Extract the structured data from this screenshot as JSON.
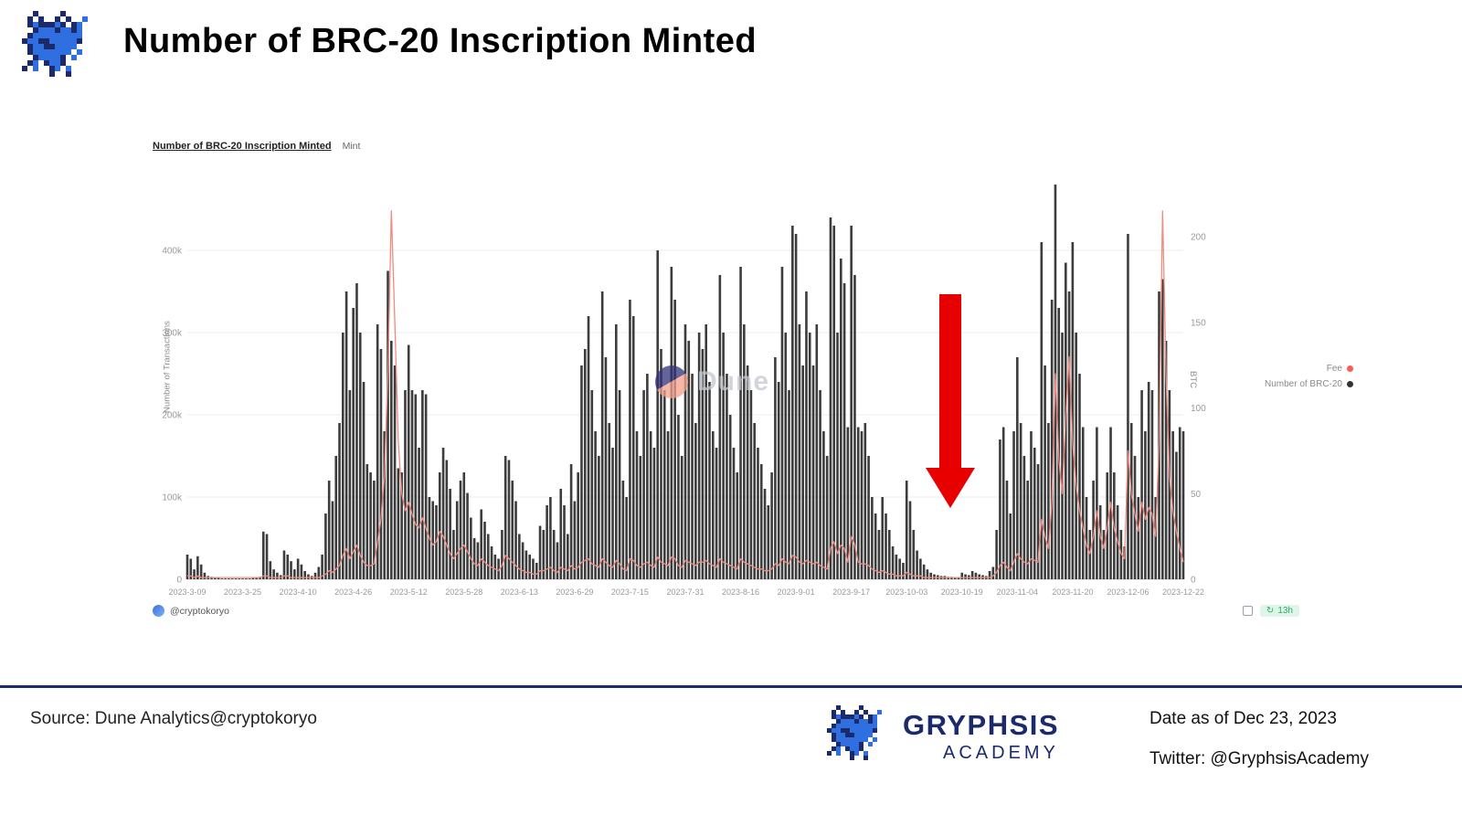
{
  "page": {
    "title": "Number of BRC-20 Inscription Minted"
  },
  "chart": {
    "header_title": "Number of BRC-20 Inscription Minted",
    "header_tab": "Mint",
    "ylabel_left": "Number of Transactions",
    "ylabel_right": "BTC",
    "watermark": "Dune",
    "author": "@cryptokoryo",
    "badge": "13h",
    "refresh_icon": "↻",
    "legend": [
      {
        "label": "Fee",
        "color": "#ff5a52"
      },
      {
        "label": "Number of BRC-20",
        "color": "#333333"
      }
    ]
  },
  "footer": {
    "source": "Source: Dune Analytics@cryptokoryo",
    "brand_name": "GRYPHSIS",
    "brand_sub": "ACADEMY",
    "date": "Date as of Dec 23, 2023",
    "twitter": "Twitter: @GryphsisAcademy"
  },
  "colors": {
    "brand_navy": "#1b2a6b",
    "bar": "#3c3c3c",
    "fee_line": "#f08b81",
    "arrow_red": "#e80000",
    "badge_green": "#27ae60"
  },
  "chart_data": {
    "type": "bar",
    "title": "Number of BRC-20 Inscription Minted",
    "xlabel": "",
    "ylabel": "Number of Transactions",
    "ylabel_right": "BTC",
    "x_start": "2023-03-09",
    "x_end": "2023-12-22",
    "x_frequency": "daily",
    "x_tick_labels": [
      "2023-3-09",
      "2023-3-25",
      "2023-4-10",
      "2023-4-26",
      "2023-5-12",
      "2023-5-28",
      "2023-6-13",
      "2023-6-29",
      "2023-7-15",
      "2023-7-31",
      "2023-8-16",
      "2023-9-01",
      "2023-9-17",
      "2023-10-03",
      "2023-10-19",
      "2023-11-04",
      "2023-11-20",
      "2023-12-06",
      "2023-12-22"
    ],
    "ylim_left": [
      0,
      500000
    ],
    "ylim_right": [
      0,
      240
    ],
    "yticks_left": [
      0,
      100000,
      200000,
      300000,
      400000
    ],
    "yticks_right": [
      0,
      50,
      100,
      150,
      200
    ],
    "grid": true,
    "legend_position": "right",
    "series": [
      {
        "name": "Number of BRC-20 Inscription Minted",
        "type": "bar",
        "axis": "left",
        "unit": "thousands of transactions",
        "color": "#3c3c3c",
        "values": [
          30,
          25,
          12,
          28,
          18,
          8,
          4,
          3,
          2,
          2,
          1,
          1,
          1,
          1,
          1,
          1,
          1,
          1,
          1,
          2,
          2,
          3,
          58,
          55,
          22,
          12,
          8,
          5,
          35,
          30,
          22,
          12,
          25,
          18,
          10,
          6,
          4,
          8,
          15,
          30,
          80,
          120,
          95,
          150,
          190,
          300,
          350,
          230,
          330,
          360,
          300,
          240,
          140,
          130,
          120,
          310,
          280,
          180,
          375,
          290,
          260,
          135,
          130,
          230,
          285,
          230,
          225,
          160,
          230,
          225,
          100,
          95,
          90,
          130,
          160,
          145,
          110,
          60,
          95,
          120,
          130,
          105,
          75,
          50,
          45,
          85,
          70,
          55,
          40,
          30,
          25,
          60,
          150,
          145,
          120,
          95,
          55,
          45,
          35,
          30,
          25,
          20,
          65,
          60,
          90,
          100,
          60,
          45,
          110,
          90,
          55,
          140,
          95,
          130,
          260,
          280,
          320,
          230,
          180,
          150,
          350,
          270,
          190,
          160,
          310,
          230,
          120,
          100,
          340,
          320,
          180,
          150,
          230,
          250,
          180,
          160,
          400,
          280,
          230,
          180,
          380,
          340,
          200,
          150,
          310,
          290,
          250,
          190,
          300,
          280,
          310,
          240,
          180,
          160,
          370,
          300,
          250,
          200,
          160,
          130,
          380,
          310,
          260,
          230,
          190,
          160,
          140,
          110,
          90,
          130,
          270,
          240,
          380,
          300,
          230,
          430,
          420,
          310,
          260,
          350,
          300,
          260,
          310,
          230,
          180,
          150,
          440,
          430,
          300,
          390,
          360,
          185,
          430,
          370,
          185,
          180,
          190,
          150,
          100,
          80,
          60,
          100,
          80,
          60,
          40,
          30,
          25,
          20,
          120,
          95,
          60,
          35,
          25,
          18,
          12,
          8,
          6,
          5,
          4,
          4,
          3,
          3,
          2,
          2,
          8,
          6,
          5,
          10,
          8,
          6,
          5,
          4,
          10,
          15,
          60,
          170,
          185,
          120,
          80,
          180,
          270,
          190,
          150,
          120,
          180,
          160,
          140,
          410,
          260,
          190,
          340,
          480,
          330,
          300,
          385,
          350,
          410,
          300,
          250,
          185,
          100,
          60,
          120,
          185,
          90,
          60,
          130,
          185,
          130,
          90,
          60,
          40,
          420,
          190,
          150,
          100,
          230,
          180,
          240,
          230,
          100,
          350,
          365,
          290,
          230,
          180,
          155,
          185,
          180
        ]
      },
      {
        "name": "Fee",
        "type": "line",
        "axis": "right",
        "unit": "BTC",
        "color": "#f08b81",
        "values": [
          2,
          2,
          1,
          2,
          1,
          1,
          1,
          1,
          1,
          1,
          1,
          1,
          1,
          1,
          1,
          1,
          1,
          1,
          1,
          1,
          1,
          1,
          2,
          2,
          1,
          1,
          1,
          1,
          2,
          2,
          1,
          1,
          1,
          1,
          1,
          1,
          1,
          1,
          1,
          2,
          3,
          5,
          4,
          6,
          8,
          14,
          18,
          12,
          16,
          20,
          14,
          10,
          8,
          8,
          9,
          22,
          35,
          60,
          120,
          215,
          150,
          80,
          50,
          40,
          45,
          38,
          32,
          30,
          36,
          30,
          24,
          20,
          22,
          28,
          25,
          20,
          15,
          12,
          15,
          18,
          20,
          16,
          12,
          9,
          8,
          12,
          10,
          8,
          7,
          6,
          5,
          8,
          14,
          12,
          10,
          8,
          6,
          5,
          4,
          4,
          3,
          3,
          5,
          5,
          6,
          7,
          5,
          4,
          7,
          6,
          5,
          8,
          6,
          7,
          10,
          11,
          12,
          9,
          8,
          7,
          12,
          10,
          8,
          7,
          11,
          9,
          6,
          5,
          12,
          11,
          8,
          7,
          9,
          10,
          8,
          7,
          13,
          10,
          9,
          8,
          13,
          12,
          8,
          7,
          11,
          10,
          9,
          8,
          10,
          10,
          11,
          9,
          8,
          7,
          12,
          10,
          9,
          8,
          7,
          6,
          12,
          10,
          9,
          8,
          7,
          6,
          6,
          5,
          5,
          6,
          9,
          8,
          12,
          10,
          9,
          14,
          13,
          10,
          9,
          11,
          10,
          9,
          10,
          8,
          7,
          6,
          18,
          22,
          15,
          20,
          18,
          10,
          25,
          20,
          10,
          9,
          9,
          8,
          6,
          5,
          4,
          5,
          4,
          3,
          3,
          2,
          2,
          2,
          4,
          3,
          2,
          2,
          2,
          1,
          1,
          1,
          1,
          1,
          1,
          1,
          1,
          1,
          1,
          1,
          1,
          1,
          1,
          1,
          1,
          1,
          1,
          1,
          1,
          2,
          4,
          8,
          10,
          7,
          5,
          10,
          15,
          12,
          10,
          9,
          12,
          11,
          10,
          35,
          25,
          18,
          45,
          120,
          70,
          50,
          95,
          130,
          80,
          55,
          40,
          30,
          20,
          15,
          25,
          40,
          25,
          18,
          30,
          45,
          30,
          22,
          15,
          12,
          75,
          50,
          38,
          28,
          45,
          35,
          42,
          38,
          25,
          80,
          215,
          120,
          60,
          40,
          28,
          18,
          10
        ]
      }
    ],
    "annotations": [
      {
        "type": "arrow-down",
        "color": "#e80000",
        "near_x": "2023-10-19",
        "meaning": "highlights drop in mint activity"
      }
    ]
  }
}
